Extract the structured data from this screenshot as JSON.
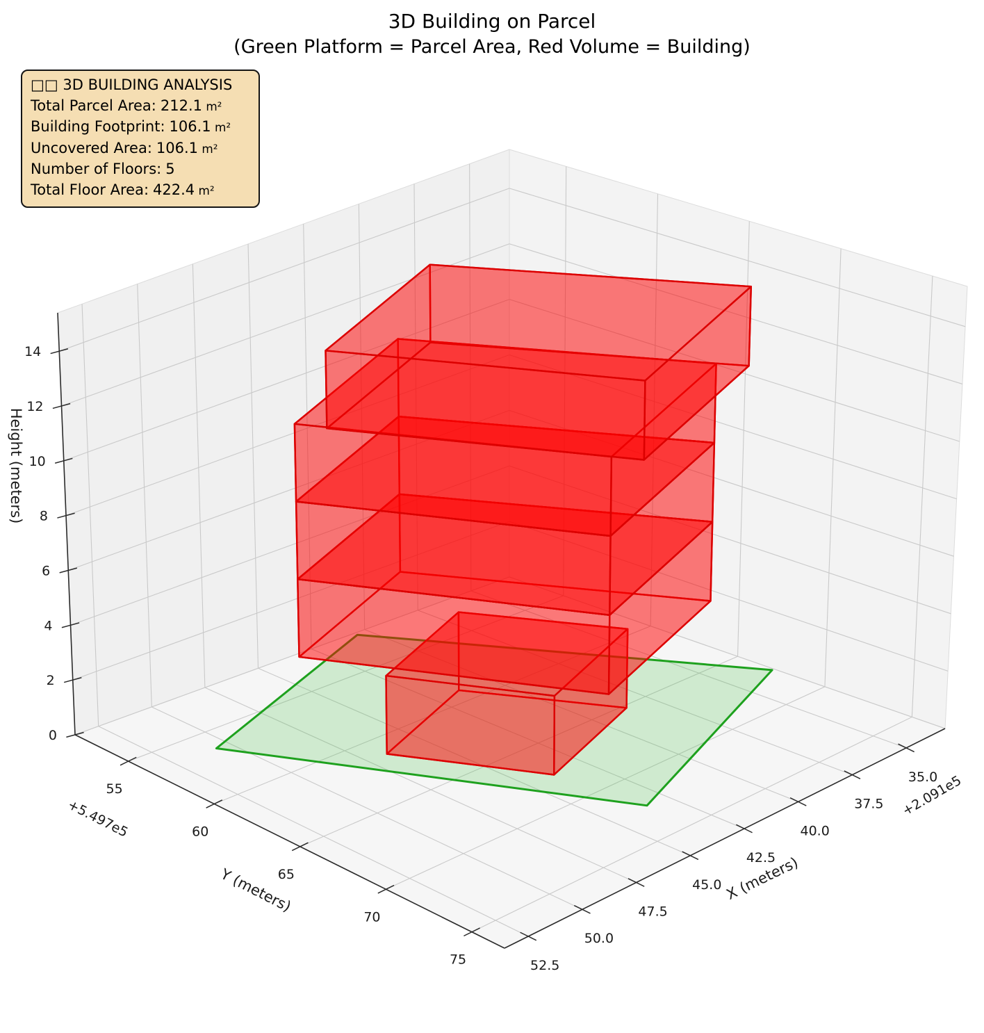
{
  "title": {
    "line1": "3D Building on Parcel",
    "line2": "(Green Platform = Parcel Area, Red Volume = Building)"
  },
  "info_box": {
    "header": "□□ 3D BUILDING ANALYSIS",
    "rows": [
      {
        "label": "Total Parcel Area",
        "value": "212.1",
        "unit": "m²"
      },
      {
        "label": "Building Footprint",
        "value": "106.1",
        "unit": "m²"
      },
      {
        "label": "Uncovered Area",
        "value": "106.1",
        "unit": "m²"
      },
      {
        "label": "Number of Floors",
        "value": "5",
        "unit": ""
      },
      {
        "label": "Total Floor Area",
        "value": "422.4",
        "unit": "m²"
      }
    ]
  },
  "chart_data": {
    "type": "3d-building-plot",
    "title": "3D Building on Parcel",
    "subtitle": "(Green Platform = Parcel Area, Red Volume = Building)",
    "legend_meaning": {
      "green_platform": "Parcel Area",
      "red_volume": "Building"
    },
    "axes": {
      "x": {
        "label": "X (meters)",
        "offset_text": "+2.091e5",
        "range": [
          33.2,
          53.6
        ],
        "ticks": [
          35.0,
          37.5,
          40.0,
          42.5,
          45.0,
          47.5,
          50.0,
          52.5
        ],
        "tick_labels": [
          "35.0",
          "37.5",
          "40.0",
          "42.5",
          "45.0",
          "47.5",
          "50.0",
          "52.5"
        ]
      },
      "y": {
        "label": "Y (meters)",
        "offset_text": "+5.497e5",
        "range": [
          51.9,
          76.9
        ],
        "ticks": [
          55,
          60,
          65,
          70,
          75
        ],
        "tick_labels": [
          "55",
          "60",
          "65",
          "70",
          "75"
        ]
      },
      "z": {
        "label": "Height (meters)",
        "offset_text": "",
        "range": [
          0,
          15.4
        ],
        "ticks": [
          0,
          2,
          4,
          6,
          8,
          10,
          12,
          14
        ],
        "tick_labels": [
          "0",
          "2",
          "4",
          "6",
          "8",
          "10",
          "12",
          "14"
        ]
      }
    },
    "parcel": {
      "area_m2": 212.1,
      "z": 0,
      "polygon": [
        [
          50.6,
          56.4
        ],
        [
          43.4,
          72.4
        ],
        [
          33.3,
          67.1
        ],
        [
          40.5,
          52.1
        ]
      ],
      "fill": "#46be46",
      "fill_opacity": 0.22,
      "edge": "#1ea11e",
      "edge_width": 3
    },
    "building": {
      "num_floors": 5,
      "floor_height_m": 2.8,
      "footprint_area_m2": 106.1,
      "uncovered_area_m2": 106.1,
      "total_floor_area_m2": 422.4,
      "fill": "#ff0000",
      "fill_opacity": 0.3,
      "edge": "#dc0000",
      "edge_width": 2.4,
      "floors": [
        {
          "level": 1,
          "z": [
            0,
            2.8
          ],
          "polygon": [
            [
              38.56,
              65.22
            ],
            [
              43.85,
              67.59
            ],
            [
              46.64,
              61.38
            ],
            [
              41.36,
              59.01
            ]
          ]
        },
        {
          "level": 2,
          "z": [
            2.8,
            5.6
          ],
          "polygon": [
            [
              35.2,
              65.8
            ],
            [
              42.57,
              69.11
            ],
            [
              47.7,
              57.7
            ],
            [
              40.33,
              54.4
            ]
          ]
        },
        {
          "level": 3,
          "z": [
            5.6,
            8.4
          ],
          "polygon": [
            [
              35.2,
              65.8
            ],
            [
              42.57,
              69.11
            ],
            [
              47.7,
              57.7
            ],
            [
              40.33,
              54.4
            ]
          ]
        },
        {
          "level": 4,
          "z": [
            8.4,
            11.2
          ],
          "polygon": [
            [
              35.2,
              65.8
            ],
            [
              42.57,
              69.11
            ],
            [
              47.7,
              57.7
            ],
            [
              40.33,
              54.4
            ]
          ]
        },
        {
          "level": 5,
          "z": [
            11.2,
            14.0
          ],
          "polygon": [
            [
              34.7,
              67.0
            ],
            [
              42.07,
              70.31
            ],
            [
              47.2,
              58.9
            ],
            [
              39.83,
              55.6
            ]
          ]
        }
      ]
    },
    "style": {
      "pane_left": "#f0f0f0",
      "pane_right": "#f3f3f3",
      "pane_floor": "#f6f6f6",
      "grid_color": "#c9c9c9",
      "axis_color": "#2b2b2b",
      "tick_label_color": "#1a1a1a",
      "background": "#ffffff",
      "grid_on": true
    }
  }
}
